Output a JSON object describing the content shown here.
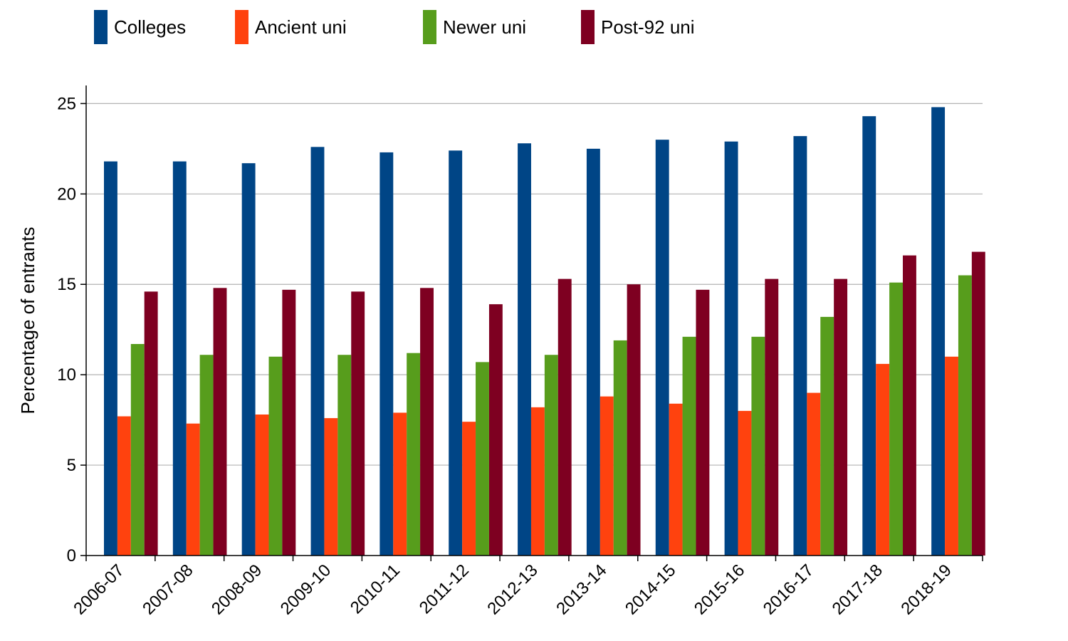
{
  "chart_data": {
    "type": "bar",
    "title": "",
    "xlabel": "",
    "ylabel": "Percentage of entrants",
    "ylim": [
      0,
      26
    ],
    "yticks": [
      0,
      5,
      10,
      15,
      20,
      25
    ],
    "grid": true,
    "legend_position": "top",
    "categories": [
      "2006-07",
      "2007-08",
      "2008-09",
      "2009-10",
      "2010-11",
      "2011-12",
      "2012-13",
      "2013-14",
      "2014-15",
      "2015-16",
      "2016-17",
      "2017-18",
      "2018-19"
    ],
    "series": [
      {
        "name": "Colleges",
        "color": "#004586",
        "values": [
          21.8,
          21.8,
          21.7,
          22.6,
          22.3,
          22.4,
          22.8,
          22.5,
          23.0,
          22.9,
          23.2,
          24.3,
          24.8
        ]
      },
      {
        "name": "Ancient uni",
        "color": "#ff420e",
        "values": [
          7.7,
          7.3,
          7.8,
          7.6,
          7.9,
          7.4,
          8.2,
          8.8,
          8.4,
          8.0,
          9.0,
          10.6,
          11.0
        ]
      },
      {
        "name": "Newer uni",
        "color": "#579d1c",
        "values": [
          11.7,
          11.1,
          11.0,
          11.1,
          11.2,
          10.7,
          11.1,
          11.9,
          12.1,
          12.1,
          13.2,
          15.1,
          15.5
        ]
      },
      {
        "name": "Post-92 uni",
        "color": "#7e0021",
        "values": [
          14.6,
          14.8,
          14.7,
          14.6,
          14.8,
          13.9,
          15.3,
          15.0,
          14.7,
          15.3,
          15.3,
          16.6,
          16.8
        ]
      }
    ]
  }
}
